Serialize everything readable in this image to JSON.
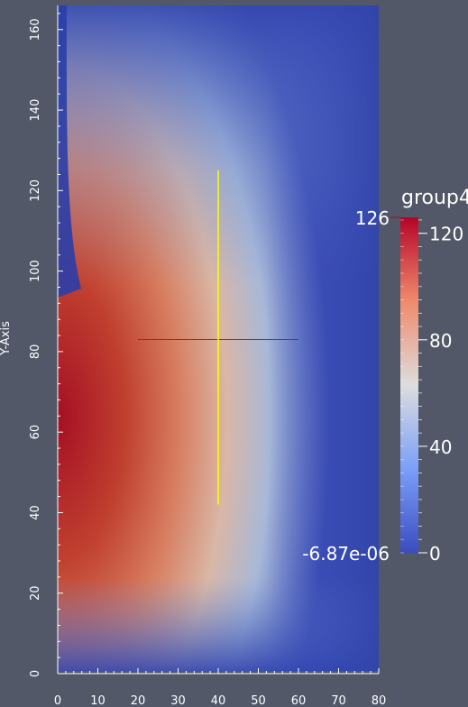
{
  "chart_data": {
    "type": "heatmap",
    "xlabel": "",
    "ylabel": "Y-Axis",
    "xlim": [
      0,
      80
    ],
    "ylim": [
      0,
      166
    ],
    "x_ticks": [
      "0",
      "10",
      "20",
      "30",
      "40",
      "50",
      "60",
      "70",
      "80"
    ],
    "y_ticks": [
      "0",
      "20",
      "40",
      "60",
      "80",
      "100",
      "120",
      "140",
      "160"
    ],
    "field": {
      "description_values": "scalar field with hot core near the left edge around y~65, decaying to the right and toward top/bottom",
      "peak_value": 126,
      "peak_location": [
        0,
        65
      ]
    },
    "colorbar": {
      "title": "group4",
      "min_label": "-6.87e-06",
      "max_label": "126",
      "ticks": [
        "120",
        "80",
        "40",
        "0"
      ],
      "tick_values": [
        120,
        80,
        40,
        0
      ],
      "colormap": "cool-to-warm",
      "colors": [
        "#3b4cc0",
        "#dddddd",
        "#b40426"
      ]
    },
    "annotations": {
      "red_line": {
        "x": [
          20,
          60
        ],
        "y": 83,
        "color": "#ff0000"
      },
      "yellow_line": {
        "x": 40,
        "y": [
          42,
          125
        ],
        "color": "#ffff00"
      }
    }
  }
}
